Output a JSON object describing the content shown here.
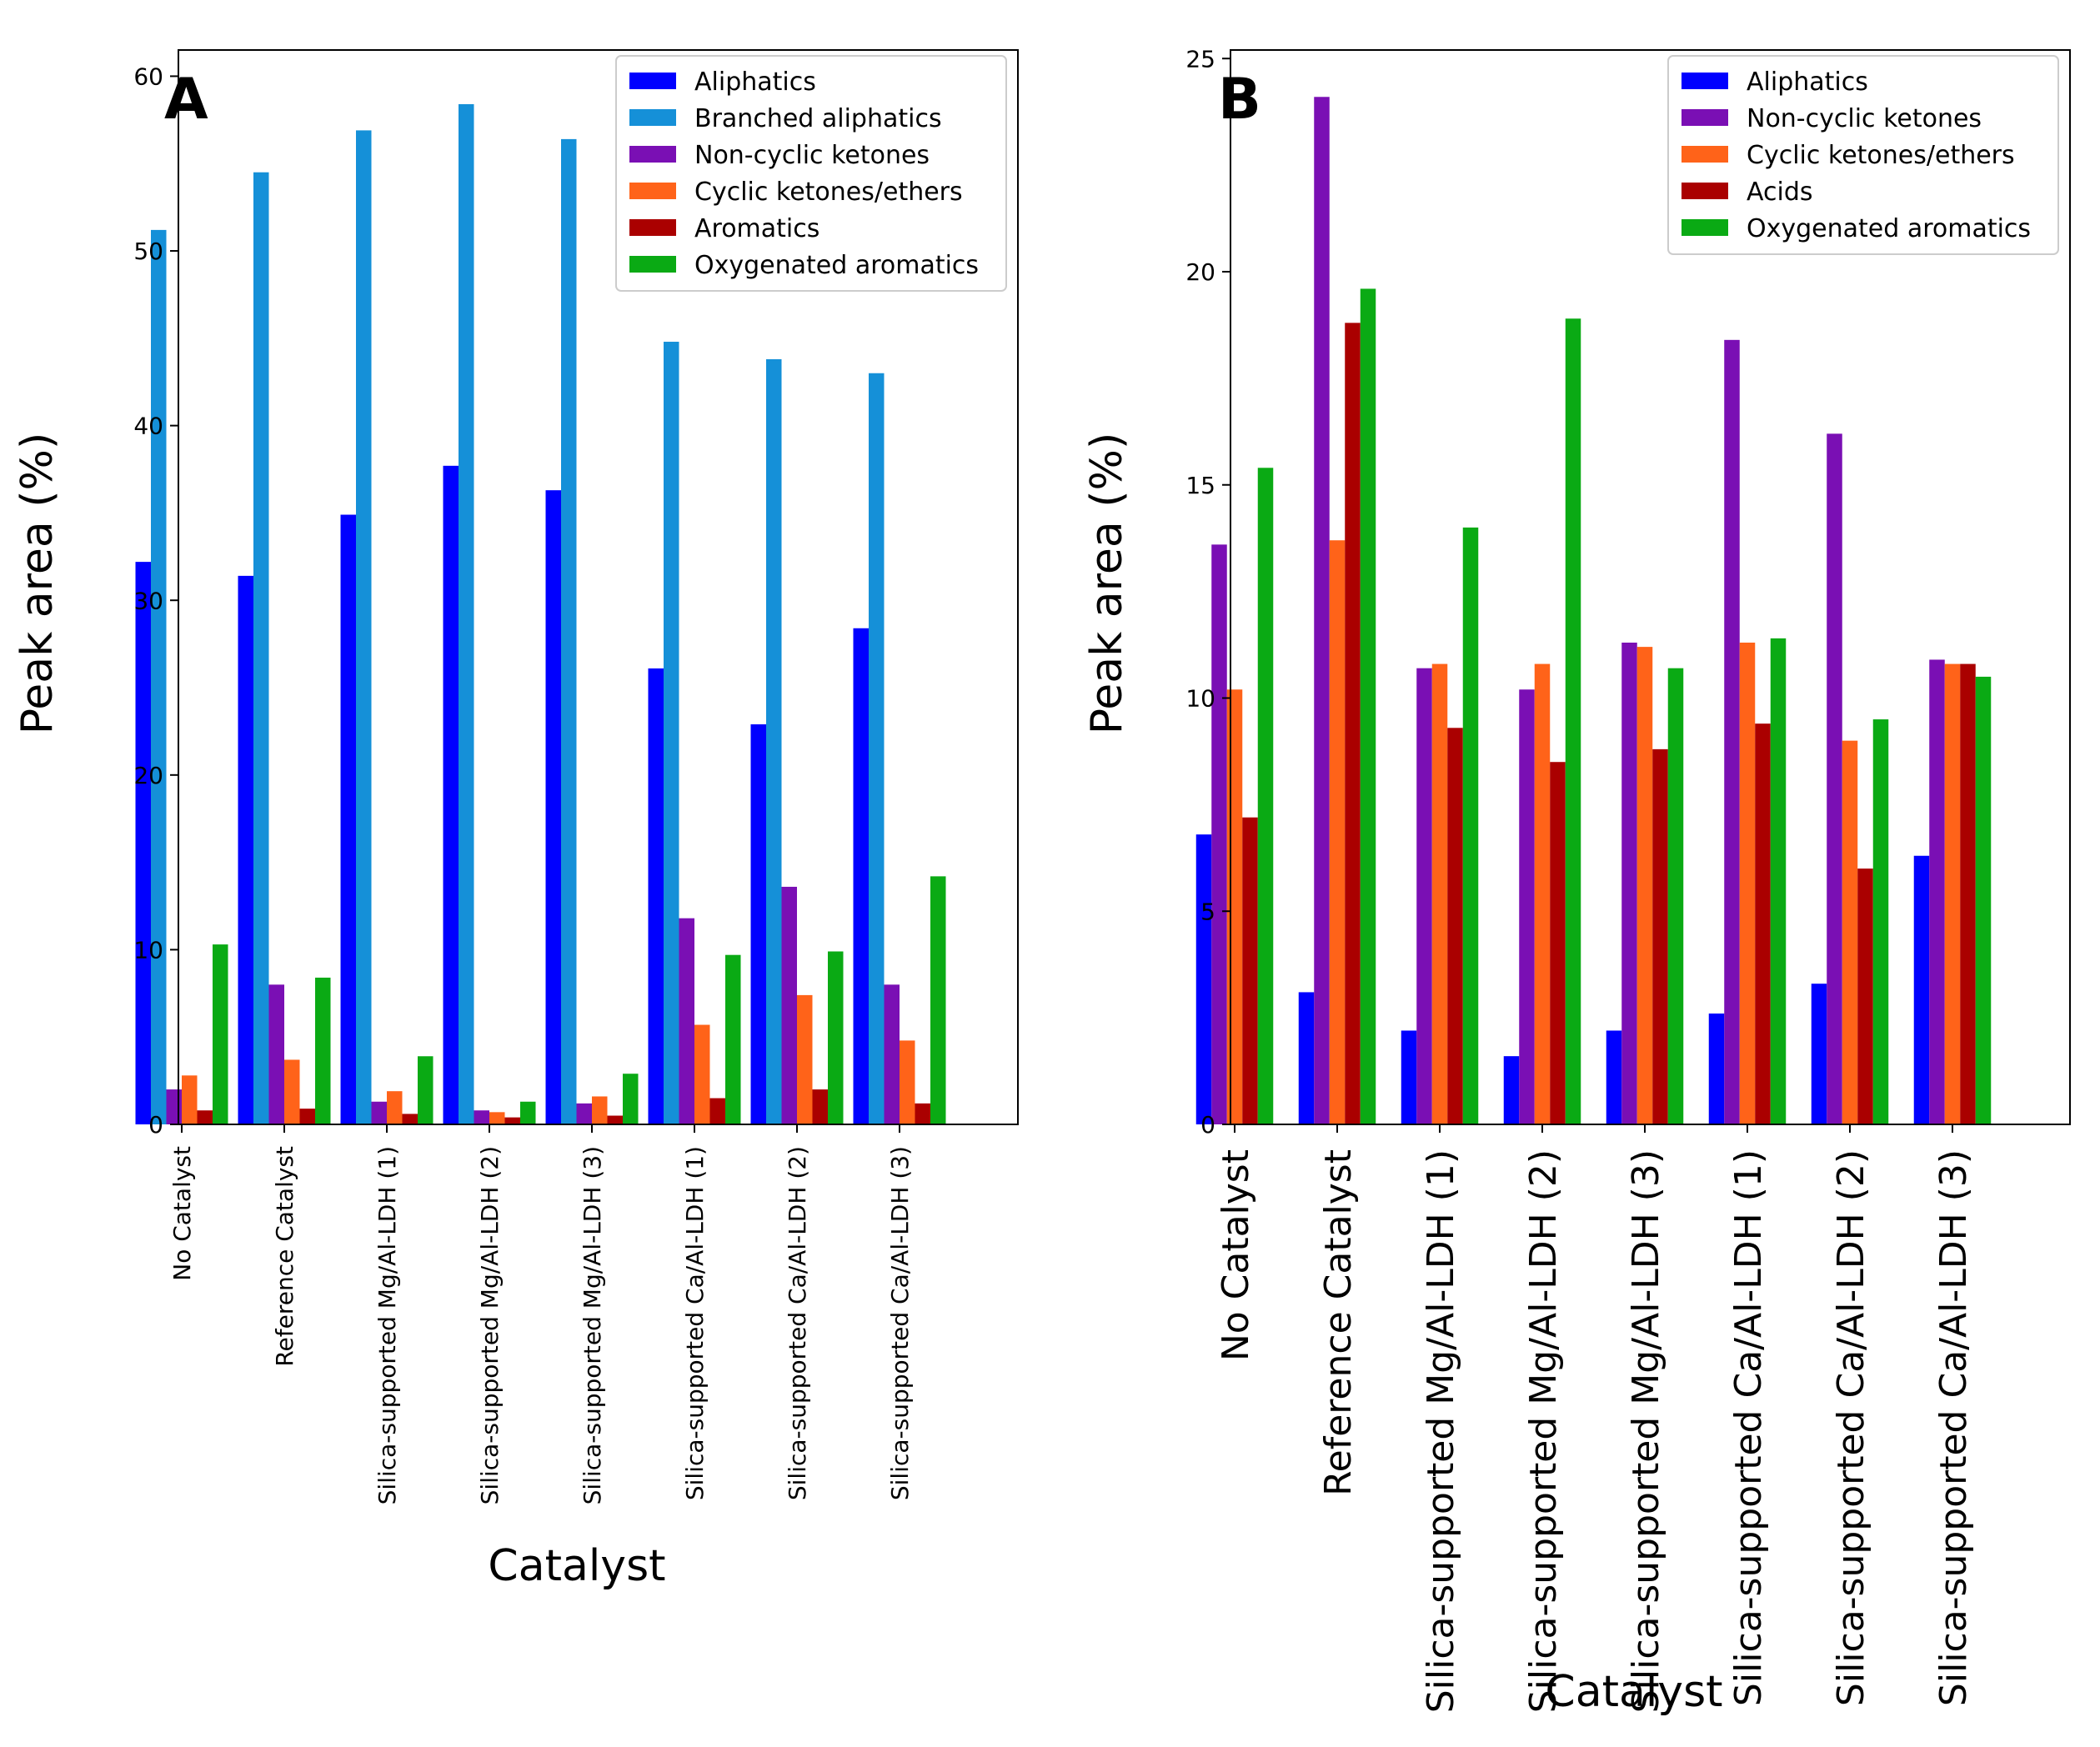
{
  "figure": {
    "background": "#ffffff"
  },
  "series_colors": {
    "Aliphatics": "#0000ff",
    "Branched aliphatics": "#1590d8",
    "Non-cyclic ketones": "#7a0fb4",
    "Cyclic ketones/ethers": "#ff6319",
    "Aromatics": "#aa0000",
    "Acids": "#aa0000",
    "Oxygenated aromatics": "#0aaa14"
  },
  "chart_data": [
    {
      "panel_label": "A",
      "type": "bar",
      "title": "",
      "xlabel": "Catalyst",
      "ylabel": "Peak area (%)",
      "ylim": [
        0,
        61.5
      ],
      "yticks": [
        0,
        10,
        20,
        30,
        40,
        50,
        60
      ],
      "grid": false,
      "legend_position": "top-right",
      "categories": [
        "No Catalyst",
        "Reference Catalyst",
        "Silica-supported Mg/Al-LDH (1)",
        "Silica-supported Mg/Al-LDH (2)",
        "Silica-supported Mg/Al-LDH (3)",
        "Silica-supported Ca/Al-LDH (1)",
        "Silica-supported Ca/Al-LDH (2)",
        "Silica-supported Ca/Al-LDH (3)"
      ],
      "series": [
        {
          "name": "Aliphatics",
          "values": [
            32.2,
            31.4,
            34.9,
            37.7,
            36.3,
            26.1,
            22.9,
            28.4
          ]
        },
        {
          "name": "Branched aliphatics",
          "values": [
            51.2,
            54.5,
            56.9,
            58.4,
            56.4,
            44.8,
            43.8,
            43.0
          ]
        },
        {
          "name": "Non-cyclic ketones",
          "values": [
            2.0,
            8.0,
            1.3,
            0.8,
            1.2,
            11.8,
            13.6,
            8.0
          ]
        },
        {
          "name": "Cyclic ketones/ethers",
          "values": [
            2.8,
            3.7,
            1.9,
            0.7,
            1.6,
            5.7,
            7.4,
            4.8
          ]
        },
        {
          "name": "Aromatics",
          "values": [
            0.8,
            0.9,
            0.6,
            0.4,
            0.5,
            1.5,
            2.0,
            1.2
          ]
        },
        {
          "name": "Oxygenated aromatics",
          "values": [
            10.3,
            8.4,
            3.9,
            1.3,
            2.9,
            9.7,
            9.9,
            14.2
          ]
        }
      ]
    },
    {
      "panel_label": "B",
      "type": "bar",
      "title": "",
      "xlabel": "Catalyst",
      "ylabel": "Peak area (%)",
      "ylim": [
        0,
        25.2
      ],
      "yticks": [
        0,
        5,
        10,
        15,
        20,
        25
      ],
      "grid": false,
      "legend_position": "top-right",
      "categories": [
        "No Catalyst",
        "Reference Catalyst",
        "Silica-supported Mg/Al-LDH (1)",
        "Silica-supported Mg/Al-LDH (2)",
        "Silica-supported Mg/Al-LDH (3)",
        "Silica-supported Ca/Al-LDH (1)",
        "Silica-supported Ca/Al-LDH (2)",
        "Silica-supported Ca/Al-LDH (3)"
      ],
      "series": [
        {
          "name": "Aliphatics",
          "values": [
            6.8,
            3.1,
            2.2,
            1.6,
            2.2,
            2.6,
            3.3,
            6.3
          ]
        },
        {
          "name": "Non-cyclic ketones",
          "values": [
            13.6,
            24.1,
            10.7,
            10.2,
            11.3,
            18.4,
            16.2,
            10.9
          ]
        },
        {
          "name": "Cyclic ketones/ethers",
          "values": [
            10.2,
            13.7,
            10.8,
            10.8,
            11.2,
            11.3,
            9.0,
            10.8
          ]
        },
        {
          "name": "Acids",
          "values": [
            7.2,
            18.8,
            9.3,
            8.5,
            8.8,
            9.4,
            6.0,
            10.8
          ]
        },
        {
          "name": "Oxygenated aromatics",
          "values": [
            15.4,
            19.6,
            14.0,
            18.9,
            10.7,
            11.4,
            9.5,
            10.5
          ]
        }
      ]
    }
  ]
}
